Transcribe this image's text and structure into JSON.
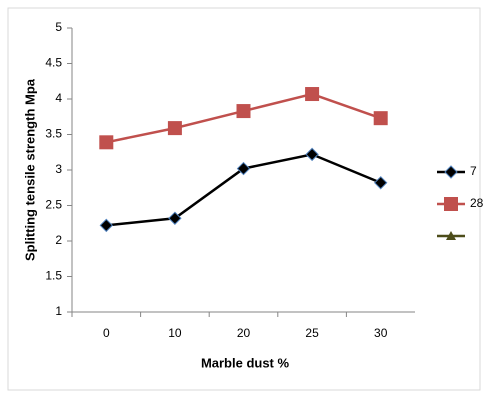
{
  "chart_data": {
    "type": "line",
    "x_label": "Marble dust  %",
    "y_label": "Splitting tensile strength Mpa",
    "categories": [
      "0",
      "10",
      "20",
      "25",
      "30"
    ],
    "series": [
      {
        "name": "7",
        "color": "#000000",
        "marker": "diamond",
        "values": [
          2.22,
          2.32,
          3.02,
          3.22,
          2.82
        ]
      },
      {
        "name": "28",
        "color": "#c0504d",
        "marker": "square",
        "values": [
          3.39,
          3.59,
          3.83,
          4.07,
          3.73
        ]
      },
      {
        "color": "#4d4d1a",
        "marker": "triangle",
        "values": [
          null,
          null,
          null,
          null,
          null
        ]
      }
    ],
    "ylim": [
      1,
      5
    ],
    "yticks": [
      1,
      1.5,
      2,
      2.5,
      3,
      3.5,
      4,
      4.5,
      5
    ],
    "grid": false
  }
}
